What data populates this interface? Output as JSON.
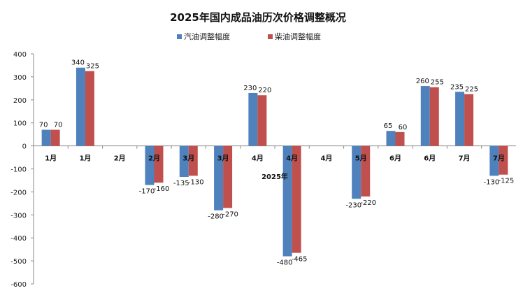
{
  "chart_data": {
    "type": "bar",
    "title": "2025年国内成品油历次价格调整概况",
    "xlabel": "2025年",
    "ylabel": "",
    "ylim": [
      -600,
      400
    ],
    "yticks": [
      400,
      300,
      200,
      100,
      0,
      -100,
      -200,
      -300,
      -400,
      -500,
      -600
    ],
    "grid": false,
    "legend_position": "top",
    "categories": [
      "1月",
      "1月",
      "2月",
      "2月",
      "3月",
      "3月",
      "4月",
      "4月",
      "4月",
      "5月",
      "6月",
      "6月",
      "7月",
      "7月"
    ],
    "series": [
      {
        "name": "汽油调整幅度",
        "color": "#4F81BD",
        "values": [
          70,
          340,
          0,
          -170,
          -135,
          -280,
          230,
          -480,
          0,
          -230,
          65,
          260,
          235,
          -130
        ],
        "labels": [
          "70",
          "340",
          "",
          "-170",
          "-135",
          "-280",
          "230",
          "-480",
          "",
          "-230",
          "65",
          "260",
          "235",
          "-130"
        ]
      },
      {
        "name": "柴油调整幅度",
        "color": "#C0504D",
        "values": [
          70,
          325,
          0,
          -160,
          -130,
          -270,
          220,
          -465,
          0,
          -220,
          60,
          255,
          225,
          -125
        ],
        "labels": [
          "70",
          "325",
          "",
          "-160",
          "-130",
          "-270",
          "220",
          "-465",
          "",
          "-220",
          "60",
          "255",
          "225",
          "-125"
        ]
      }
    ]
  }
}
